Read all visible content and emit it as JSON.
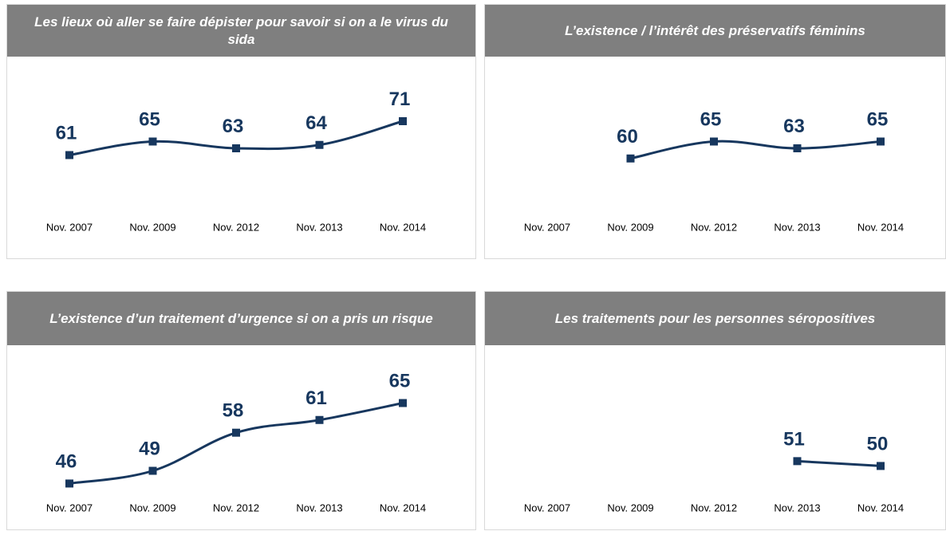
{
  "chart_data": [
    {
      "type": "line",
      "title": "Les lieux où aller se faire dépister pour savoir si on a le virus du sida",
      "categories": [
        "Nov. 2007",
        "Nov. 2009",
        "Nov. 2012",
        "Nov. 2013",
        "Nov. 2014"
      ],
      "values": [
        61,
        65,
        63,
        64,
        71
      ],
      "ylim": [
        43,
        83
      ],
      "color": "#17375e"
    },
    {
      "type": "line",
      "title": "L’existence / l’intérêt des préservatifs féminins",
      "categories": [
        "Nov. 2007",
        "Nov. 2009",
        "Nov. 2012",
        "Nov. 2013",
        "Nov. 2014"
      ],
      "values": [
        null,
        60,
        65,
        63,
        65
      ],
      "ylim": [
        43,
        83
      ],
      "color": "#17375e"
    },
    {
      "type": "line",
      "title": "L’existence d’un traitement d’urgence si on a pris un risque",
      "categories": [
        "Nov. 2007",
        "Nov. 2009",
        "Nov. 2012",
        "Nov. 2013",
        "Nov. 2014"
      ],
      "values": [
        46,
        49,
        58,
        61,
        65
      ],
      "ylim": [
        41,
        73
      ],
      "color": "#17375e"
    },
    {
      "type": "line",
      "title": "Les traitements pour les personnes séropositives",
      "categories": [
        "Nov. 2007",
        "Nov. 2009",
        "Nov. 2012",
        "Nov. 2013",
        "Nov. 2014"
      ],
      "values": [
        null,
        null,
        null,
        51,
        50
      ],
      "ylim": [
        42,
        70
      ],
      "color": "#17375e"
    }
  ]
}
